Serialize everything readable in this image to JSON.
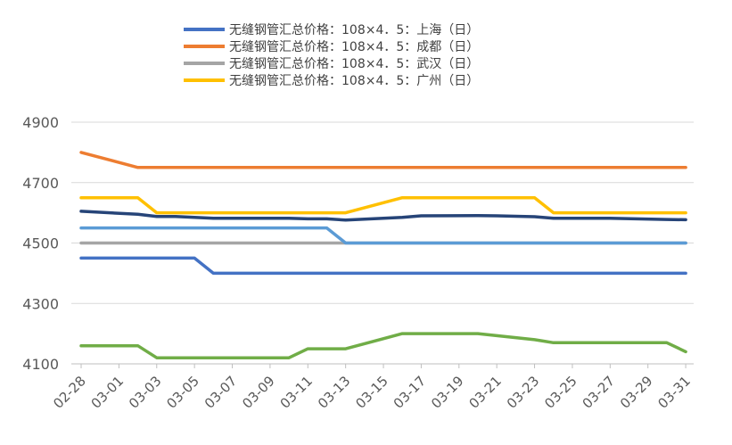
{
  "chart_data": {
    "type": "line",
    "title": "",
    "xlabel": "",
    "ylabel": "",
    "ylim": [
      4100,
      4900
    ],
    "yticks": [
      4100,
      4300,
      4500,
      4700,
      4900
    ],
    "grid": true,
    "legend_position": "top",
    "x_tick_labels": [
      "02-28",
      "03-01",
      "03-03",
      "03-05",
      "03-07",
      "03-09",
      "03-11",
      "03-13",
      "03-15",
      "03-17",
      "03-19",
      "03-21",
      "03-23",
      "03-25",
      "03-27",
      "03-29",
      "03-31"
    ],
    "series": [
      {
        "name": "无缝钢管汇总价格：108×4．5：上海（日）",
        "color": "#4472C4",
        "points": [
          [
            "02-28",
            4450
          ],
          [
            "03-02",
            4450
          ],
          [
            "03-03",
            4450
          ],
          [
            "03-04",
            4450
          ],
          [
            "03-05",
            4450
          ],
          [
            "03-06",
            4400
          ],
          [
            "03-31",
            4400
          ]
        ]
      },
      {
        "name": "无缝钢管汇总价格：108×4．5：成都（日）",
        "color": "#ED7D31",
        "points": [
          [
            "02-28",
            4800
          ],
          [
            "03-02",
            4750
          ],
          [
            "03-31",
            4750
          ]
        ]
      },
      {
        "name": "无缝钢管汇总价格：108×4．5：武汉（日）",
        "color": "#A5A5A5",
        "points": [
          [
            "02-28",
            4500
          ],
          [
            "03-31",
            4500
          ]
        ]
      },
      {
        "name": "无缝钢管汇总价格：108×4．5：广州（日）",
        "color": "#FFC000",
        "points": [
          [
            "02-28",
            4650
          ],
          [
            "03-02",
            4650
          ],
          [
            "03-03",
            4600
          ],
          [
            "03-13",
            4600
          ],
          [
            "03-16",
            4650
          ],
          [
            "03-23",
            4650
          ],
          [
            "03-24",
            4600
          ],
          [
            "03-31",
            4600
          ]
        ]
      },
      {
        "name": "",
        "color": "#5B9BD5",
        "points": [
          [
            "02-28",
            4550
          ],
          [
            "03-12",
            4550
          ],
          [
            "03-13",
            4500
          ],
          [
            "03-31",
            4500
          ]
        ]
      },
      {
        "name": "",
        "color": "#264478",
        "points": [
          [
            "02-28",
            4605
          ],
          [
            "03-02",
            4595
          ],
          [
            "03-03",
            4588
          ],
          [
            "03-04",
            4588
          ],
          [
            "03-06",
            4582
          ],
          [
            "03-10",
            4582
          ],
          [
            "03-11",
            4580
          ],
          [
            "03-12",
            4580
          ],
          [
            "03-13",
            4576
          ],
          [
            "03-15",
            4582
          ],
          [
            "03-16",
            4585
          ],
          [
            "03-17",
            4590
          ],
          [
            "03-20",
            4591
          ],
          [
            "03-21",
            4590
          ],
          [
            "03-23",
            4587
          ],
          [
            "03-24",
            4582
          ],
          [
            "03-27",
            4582
          ],
          [
            "03-30",
            4578
          ],
          [
            "03-31",
            4577
          ]
        ]
      },
      {
        "name": "",
        "color": "#70AD47",
        "points": [
          [
            "02-28",
            4160
          ],
          [
            "03-02",
            4160
          ],
          [
            "03-03",
            4120
          ],
          [
            "03-10",
            4120
          ],
          [
            "03-11",
            4150
          ],
          [
            "03-13",
            4150
          ],
          [
            "03-16",
            4200
          ],
          [
            "03-20",
            4200
          ],
          [
            "03-23",
            4180
          ],
          [
            "03-24",
            4170
          ],
          [
            "03-30",
            4170
          ],
          [
            "03-31",
            4140
          ]
        ]
      }
    ]
  }
}
